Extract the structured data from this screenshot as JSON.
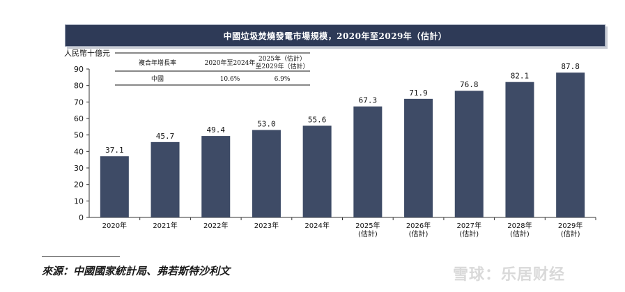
{
  "title": "中國垃圾焚燒發電市場規模，2020年至2029年（估計）",
  "unit_label": "人民幣十億元",
  "cagr_table": {
    "header": [
      "複合年增長率",
      "2020年至2024年",
      "2025年（估計）",
      "至2029年（估計）"
    ],
    "row": [
      "中國",
      "10.6%",
      "6.9%"
    ]
  },
  "source": "來源：中國國家統計局、弗若斯特沙利文",
  "watermark": "雪球：乐居财经",
  "colors": {
    "bar": "#3e4b66",
    "title_bg": "#2e3a57"
  },
  "chart_data": {
    "type": "bar",
    "categories": [
      "2020年",
      "2021年",
      "2022年",
      "2023年",
      "2024年",
      "2025年\n(估計)",
      "2026年\n(估計)",
      "2027年\n(估計)",
      "2028年\n(估計)",
      "2029年\n(估計)"
    ],
    "values": [
      37.1,
      45.7,
      49.4,
      53.0,
      55.6,
      67.3,
      71.9,
      76.8,
      82.1,
      87.8
    ],
    "value_labels": [
      "37.1",
      "45.7",
      "49.4",
      "53.0",
      "55.6",
      "67.3",
      "71.9",
      "76.8",
      "82.1",
      "87.8"
    ],
    "ylim": [
      0,
      90
    ],
    "yticks": [
      0,
      10,
      20,
      30,
      40,
      50,
      60,
      70,
      80,
      90
    ],
    "ylabel": "人民幣十億元",
    "grid": false
  }
}
